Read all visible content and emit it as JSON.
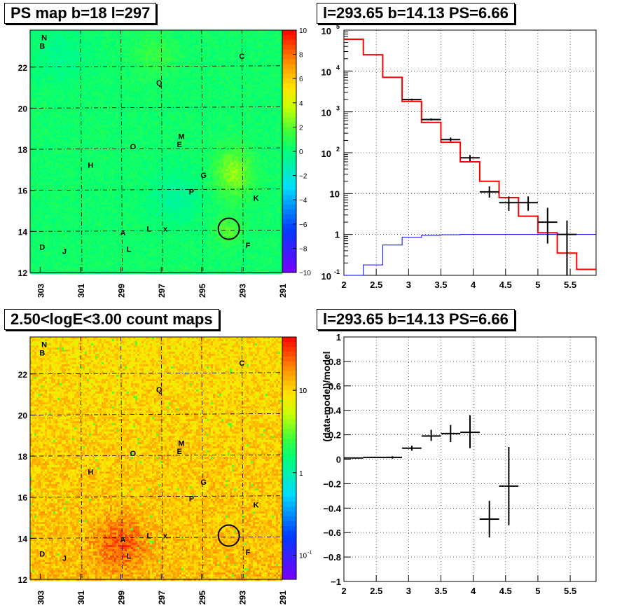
{
  "panels": {
    "map1_title": "PS map b=18 l=297",
    "spec_title": "l=293.65 b=14.13 PS=6.66",
    "map2_title": "2.50<logE<3.00 count maps",
    "resid_title": "l=293.65 b=14.13 PS=6.66"
  },
  "map_axes": {
    "x_ticks": [
      "303",
      "301",
      "299",
      "297",
      "295",
      "293",
      "291"
    ],
    "y_ticks": [
      "12",
      "14",
      "16",
      "18",
      "20",
      "22"
    ]
  },
  "colorbar1_ticks": [
    "10",
    "8",
    "6",
    "4",
    "2",
    "0",
    "−2",
    "−4",
    "−6",
    "−8",
    "−10"
  ],
  "colorbar2_ticks": [
    "10",
    "1",
    "10",
    "-1"
  ],
  "source_labels": [
    {
      "t": "N",
      "l": 302.8,
      "b": 23.3
    },
    {
      "t": "B",
      "l": 302.9,
      "b": 22.9
    },
    {
      "t": "C",
      "l": 293.0,
      "b": 22.4
    },
    {
      "t": "Q",
      "l": 297.1,
      "b": 21.1
    },
    {
      "t": "M",
      "l": 296.0,
      "b": 18.5
    },
    {
      "t": "E",
      "l": 296.1,
      "b": 18.1
    },
    {
      "t": "O",
      "l": 298.4,
      "b": 18.0
    },
    {
      "t": "H",
      "l": 300.5,
      "b": 17.1
    },
    {
      "t": "G",
      "l": 294.9,
      "b": 16.6
    },
    {
      "t": "P",
      "l": 295.5,
      "b": 15.8
    },
    {
      "t": "K",
      "l": 292.3,
      "b": 15.5
    },
    {
      "t": "A",
      "l": 298.9,
      "b": 13.8
    },
    {
      "t": "L",
      "l": 297.6,
      "b": 14.0
    },
    {
      "t": "x",
      "l": 296.8,
      "b": 14.0
    },
    {
      "t": "D",
      "l": 302.9,
      "b": 13.1
    },
    {
      "t": "L",
      "l": 298.6,
      "b": 13.0
    },
    {
      "t": "J",
      "l": 301.8,
      "b": 12.9
    },
    {
      "t": "F",
      "l": 292.7,
      "b": 13.2
    }
  ],
  "chart_data": [
    {
      "type": "heatmap",
      "title": "PS map b=18 l=297",
      "xlim": [
        303.5,
        291
      ],
      "ylim": [
        12,
        23.8
      ],
      "zlim": [
        -10,
        10
      ],
      "colorbar": "rainbow",
      "description_values": "mostly 0 to 2 (green), bright spot ~5 near l=293.5 b=16.8"
    },
    {
      "type": "line",
      "title": "l=293.65 b=14.13 PS=6.66",
      "xlim": [
        2,
        5.9
      ],
      "ylim": [
        0.1,
        100000
      ],
      "log_y": true,
      "series": [
        {
          "color": "#ff0000",
          "edges": [
            2.0,
            2.3,
            2.6,
            2.9,
            3.2,
            3.5,
            3.8,
            4.1,
            4.4,
            4.7,
            5.0,
            5.3,
            5.6,
            5.9
          ],
          "values": [
            60000,
            25000,
            7000,
            1800,
            550,
            180,
            60,
            20,
            8,
            2.8,
            1.1,
            0.35,
            0.14
          ]
        },
        {
          "color": "#0000ff",
          "edges": [
            2.0,
            2.3,
            2.6,
            2.9,
            3.2,
            3.5,
            3.8,
            4.1,
            4.4,
            4.7,
            5.0,
            5.3,
            5.6,
            5.9
          ],
          "values": [
            0.1,
            0.18,
            0.55,
            0.85,
            0.95,
            0.98,
            1.0,
            1.0,
            1.0,
            1.0,
            1.0,
            1.0,
            1.0
          ]
        },
        {
          "color": "#000000",
          "points": [
            {
              "x": 3.05,
              "y": 2000,
              "xlo": 2.9,
              "xhi": 3.2,
              "ylo": 1900,
              "yhi": 2100
            },
            {
              "x": 3.35,
              "y": 650,
              "xlo": 3.2,
              "xhi": 3.5,
              "ylo": 610,
              "yhi": 690
            },
            {
              "x": 3.65,
              "y": 210,
              "xlo": 3.5,
              "xhi": 3.8,
              "ylo": 190,
              "yhi": 235
            },
            {
              "x": 3.95,
              "y": 75,
              "xlo": 3.8,
              "xhi": 4.1,
              "ylo": 62,
              "yhi": 88
            },
            {
              "x": 4.25,
              "y": 11,
              "xlo": 4.1,
              "xhi": 4.4,
              "ylo": 8,
              "yhi": 15
            },
            {
              "x": 4.55,
              "y": 6,
              "xlo": 4.4,
              "xhi": 4.7,
              "ylo": 3.8,
              "yhi": 8.5
            },
            {
              "x": 4.85,
              "y": 6,
              "xlo": 4.7,
              "xhi": 5.0,
              "ylo": 3.8,
              "yhi": 8.5
            },
            {
              "x": 5.15,
              "y": 2,
              "xlo": 5.0,
              "xhi": 5.3,
              "ylo": 0.6,
              "yhi": 4.5
            },
            {
              "x": 5.45,
              "y": 1,
              "xlo": 5.3,
              "xhi": 5.6,
              "ylo": 0.1,
              "yhi": 2.2
            }
          ]
        }
      ],
      "x_ticks": [
        "2",
        "2.5",
        "3",
        "3.5",
        "4",
        "4.5",
        "5",
        "5.5"
      ],
      "y_ticks": [
        "10^-1",
        "1",
        "10",
        "10^2",
        "10^3",
        "10^4",
        "10^5"
      ]
    },
    {
      "type": "heatmap",
      "title": "2.50<logE<3.00 count maps",
      "xlim": [
        303.5,
        291
      ],
      "ylim": [
        12,
        23.8
      ],
      "colorbar": "rainbow-log",
      "description_values": "counts mostly ~3-10 (yellow/orange), brighter near A at l=299 b=13.8"
    },
    {
      "type": "scatter",
      "title": "l=293.65 b=14.13 PS=6.66",
      "ylabel": "(data-model)/model",
      "xlim": [
        2,
        5.9
      ],
      "ylim": [
        -1,
        1
      ],
      "points": [
        {
          "x": 2.15,
          "y": 0.01,
          "xlo": 2.0,
          "xhi": 2.3,
          "ylo": 0.005,
          "yhi": 0.015
        },
        {
          "x": 2.45,
          "y": 0.015,
          "xlo": 2.3,
          "xhi": 2.6,
          "ylo": 0.01,
          "yhi": 0.02
        },
        {
          "x": 2.75,
          "y": 0.015,
          "xlo": 2.6,
          "xhi": 2.9,
          "ylo": 0.005,
          "yhi": 0.025
        },
        {
          "x": 3.05,
          "y": 0.09,
          "xlo": 2.9,
          "xhi": 3.2,
          "ylo": 0.07,
          "yhi": 0.11
        },
        {
          "x": 3.35,
          "y": 0.19,
          "xlo": 3.2,
          "xhi": 3.5,
          "ylo": 0.15,
          "yhi": 0.24
        },
        {
          "x": 3.65,
          "y": 0.21,
          "xlo": 3.5,
          "xhi": 3.8,
          "ylo": 0.14,
          "yhi": 0.28
        },
        {
          "x": 3.95,
          "y": 0.22,
          "xlo": 3.8,
          "xhi": 4.1,
          "ylo": 0.09,
          "yhi": 0.36
        },
        {
          "x": 4.25,
          "y": -0.49,
          "xlo": 4.1,
          "xhi": 4.4,
          "ylo": -0.64,
          "yhi": -0.34
        },
        {
          "x": 4.55,
          "y": -0.22,
          "xlo": 4.4,
          "xhi": 4.7,
          "ylo": -0.54,
          "yhi": 0.1
        }
      ],
      "x_ticks": [
        "2",
        "2.5",
        "3",
        "3.5",
        "4",
        "4.5",
        "5",
        "5.5"
      ],
      "y_ticks": [
        "−1",
        "−0.8",
        "−0.6",
        "−0.4",
        "−0.2",
        "0",
        "0.2",
        "0.4",
        "0.6",
        "0.8",
        "1"
      ]
    }
  ]
}
